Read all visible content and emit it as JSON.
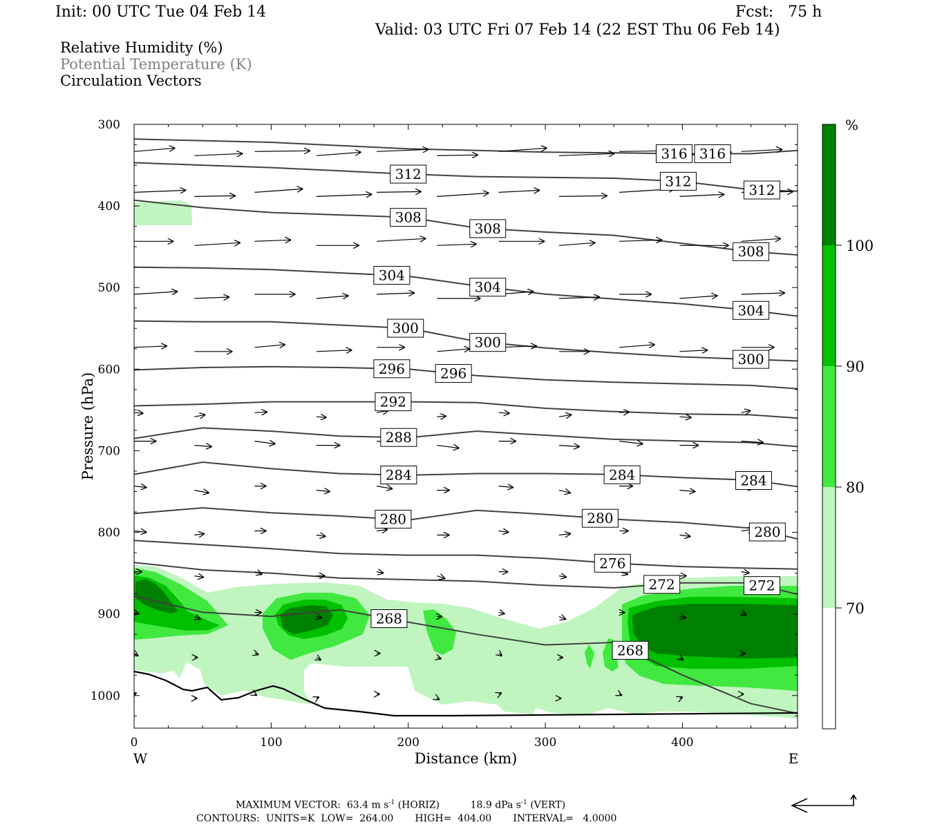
{
  "header": {
    "init": "Init: 00 UTC Tue 04 Feb 14",
    "fcst": "Fcst:   75 h",
    "valid": "Valid: 03 UTC Fri 07 Feb 14 (22 EST Thu 06 Feb 14)"
  },
  "legend": {
    "rh": "Relative Humidity (%)",
    "theta": "Potential Temperature (K)",
    "vectors": "Circulation Vectors"
  },
  "colors": {
    "rh_70_80": "#c0f5c0",
    "rh_80_90": "#40e840",
    "rh_90_100": "#00c000",
    "rh_100": "#008000",
    "contour": "#404040"
  },
  "chart_data": {
    "type": "cross-section",
    "xlabel": "Distance (km)",
    "ylabel": "Pressure (hPa)",
    "xlim": [
      0,
      484
    ],
    "ylim": [
      1040,
      300
    ],
    "x_ticks": [
      "0",
      "100",
      "200",
      "300",
      "400"
    ],
    "x_tick_values": [
      0,
      100,
      200,
      300,
      400
    ],
    "y_ticks": [
      "300",
      "400",
      "500",
      "600",
      "700",
      "800",
      "900",
      "1000"
    ],
    "y_tick_values": [
      300,
      400,
      500,
      600,
      700,
      800,
      900,
      1000
    ],
    "west_label": "W",
    "east_label": "E",
    "colorbar": {
      "unit": "%",
      "levels": [
        "70",
        "80",
        "90",
        "100"
      ],
      "level_values": [
        70,
        80,
        90,
        100
      ]
    },
    "theta_contours": [
      {
        "value": 316,
        "label": "316",
        "x": [
          0,
          50,
          100,
          150,
          200,
          250,
          300,
          350,
          400,
          450,
          484
        ],
        "p": [
          318,
          320,
          322,
          326,
          330,
          332,
          334,
          335,
          336,
          336,
          332
        ],
        "label_x": [
          394,
          422
        ]
      },
      {
        "value": 312,
        "label": "312",
        "x": [
          0,
          50,
          100,
          150,
          200,
          250,
          300,
          350,
          400,
          450,
          484
        ],
        "p": [
          347,
          350,
          353,
          357,
          361,
          364,
          365,
          366,
          370,
          380,
          382
        ],
        "label_x": [
          200,
          397,
          458
        ]
      },
      {
        "value": 308,
        "label": "308",
        "x": [
          0,
          50,
          100,
          150,
          200,
          250,
          300,
          350,
          400,
          450,
          484
        ],
        "p": [
          393,
          402,
          408,
          411,
          414,
          427,
          432,
          436,
          446,
          456,
          460
        ],
        "label_x": [
          200,
          258,
          450
        ]
      },
      {
        "value": 304,
        "label": "304",
        "x": [
          0,
          50,
          100,
          150,
          200,
          250,
          300,
          350,
          400,
          450,
          484
        ],
        "p": [
          475,
          476,
          478,
          482,
          486,
          498,
          508,
          514,
          520,
          528,
          535
        ],
        "label_x": [
          188,
          258,
          450
        ]
      },
      {
        "value": 300,
        "label": "300",
        "x": [
          0,
          50,
          100,
          150,
          200,
          250,
          300,
          350,
          400,
          450,
          484
        ],
        "p": [
          541,
          542,
          542,
          546,
          550,
          566,
          574,
          580,
          585,
          588,
          590
        ],
        "label_x": [
          198,
          258,
          450
        ]
      },
      {
        "value": 296,
        "label": "296",
        "x": [
          0,
          50,
          100,
          150,
          200,
          250,
          300,
          350,
          400,
          450,
          484
        ],
        "p": [
          601,
          598,
          597,
          598,
          600,
          608,
          613,
          616,
          618,
          620,
          624
        ],
        "label_x": [
          188,
          233
        ]
      },
      {
        "value": 292,
        "label": "292",
        "x": [
          0,
          50,
          100,
          150,
          200,
          250,
          300,
          350,
          400,
          450,
          484
        ],
        "p": [
          645,
          643,
          640,
          640,
          640,
          641,
          648,
          652,
          655,
          656,
          660
        ],
        "label_x": [
          189
        ]
      },
      {
        "value": 288,
        "label": "288",
        "x": [
          0,
          50,
          100,
          150,
          200,
          250,
          300,
          350,
          400,
          450,
          484
        ],
        "p": [
          685,
          672,
          676,
          682,
          684,
          676,
          681,
          686,
          688,
          690,
          695
        ],
        "label_x": [
          193
        ]
      },
      {
        "value": 284,
        "label": "284",
        "x": [
          0,
          50,
          100,
          150,
          200,
          250,
          300,
          350,
          400,
          450,
          484
        ],
        "p": [
          729,
          714,
          722,
          728,
          730,
          728,
          728,
          729,
          733,
          736,
          744
        ],
        "label_x": [
          193,
          356,
          452
        ]
      },
      {
        "value": 280,
        "label": "280",
        "x": [
          0,
          50,
          100,
          150,
          200,
          250,
          300,
          350,
          400,
          450,
          484
        ],
        "p": [
          777,
          770,
          776,
          780,
          785,
          773,
          778,
          784,
          788,
          795,
          808
        ],
        "label_x": [
          189,
          340,
          462
        ]
      },
      {
        "value": 276,
        "label": "276",
        "x": [
          0,
          50,
          100,
          150,
          200,
          250,
          300,
          350,
          400,
          450,
          484
        ],
        "p": [
          810,
          815,
          820,
          826,
          828,
          828,
          832,
          838,
          842,
          844,
          845
        ],
        "label_x": [
          349
        ]
      },
      {
        "value": 272,
        "label": "272",
        "x": [
          0,
          50,
          100,
          150,
          200,
          250,
          300,
          350,
          400,
          450,
          484
        ],
        "p": [
          837,
          846,
          850,
          856,
          858,
          860,
          865,
          868,
          862,
          862,
          876
        ],
        "label_x": [
          385,
          458
        ]
      },
      {
        "value": 268,
        "label": "268",
        "x": [
          0,
          50,
          100,
          150,
          200,
          250,
          300,
          350,
          400,
          450,
          484
        ],
        "p": [
          878,
          898,
          903,
          895,
          910,
          925,
          938,
          935,
          975,
          1010,
          1022
        ],
        "label_x": [
          186,
          362
        ]
      }
    ],
    "max_vector": {
      "label": "MAXIMUM VECTOR:",
      "horiz_value": "63.4",
      "horiz_unit": "m s",
      "horiz_tag": "(HORIZ)",
      "vert_value": "18.9",
      "vert_unit": "dPa s",
      "vert_tag": "(VERT)",
      "exponent": "-1"
    },
    "contour_info": {
      "prefix": "CONTOURS:",
      "units": "UNITS=K",
      "low_label": "LOW=",
      "low": "264.00",
      "high_label": "HIGH=",
      "high": "404.00",
      "interval_label": "INTERVAL=",
      "interval": "4.0000"
    }
  }
}
